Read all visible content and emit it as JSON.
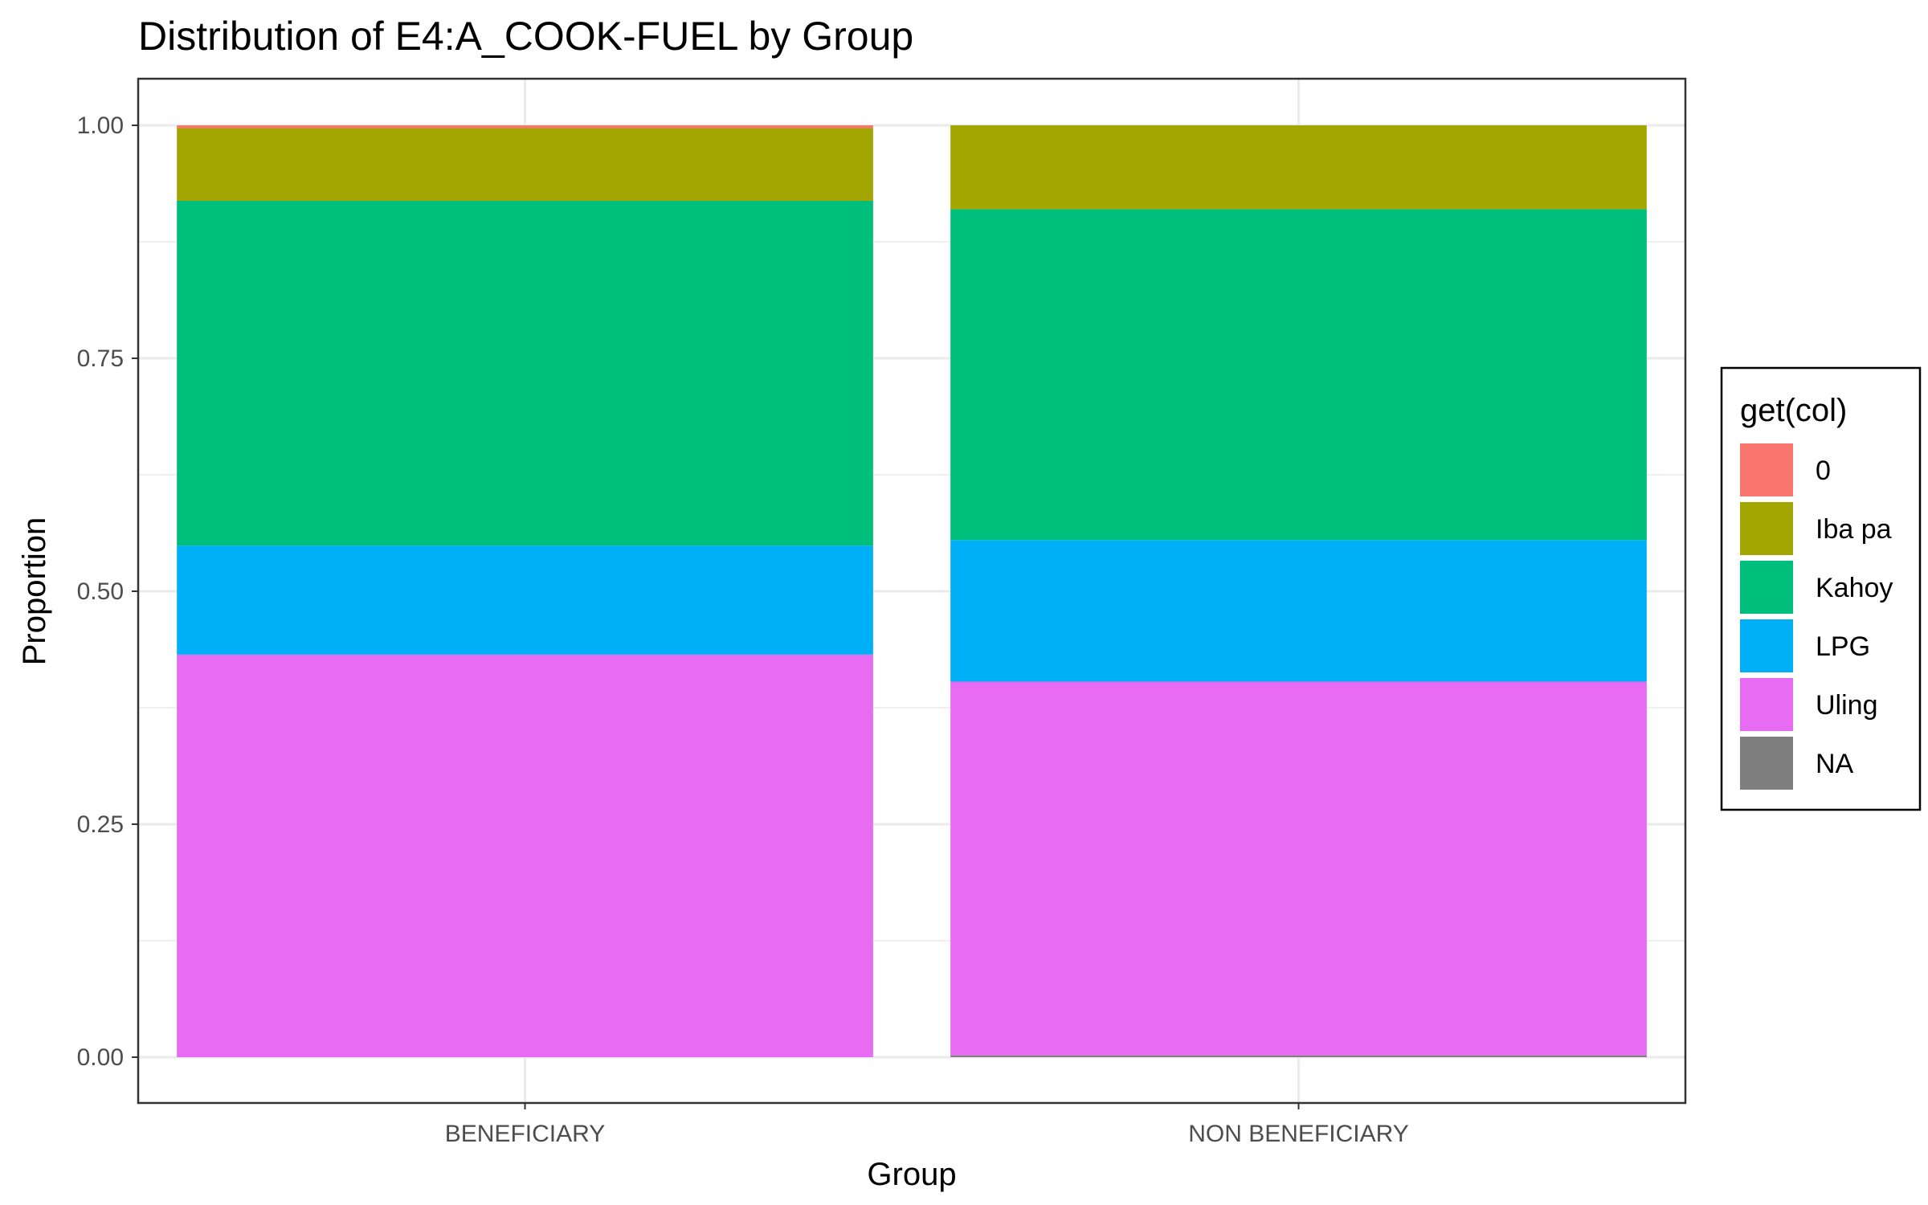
{
  "chart_data": {
    "type": "bar",
    "stacked": true,
    "title": "Distribution of E4:A_COOK-FUEL by Group",
    "xlabel": "Group",
    "ylabel": "Proportion",
    "ylim": [
      0,
      1.05
    ],
    "yticks": [
      "0.00",
      "0.25",
      "0.50",
      "0.75",
      "1.00"
    ],
    "grid": true,
    "legend_position": "right",
    "legend_title": "get(col)",
    "categories": [
      "BENEFICIARY",
      "NON BENEFICIARY"
    ],
    "series": [
      {
        "name": "0",
        "color": "#F8766D",
        "values": [
          0.003,
          0.0
        ]
      },
      {
        "name": "Iba pa",
        "color": "#A3A500",
        "values": [
          0.078,
          0.09
        ]
      },
      {
        "name": "Kahoy",
        "color": "#00BF7D",
        "values": [
          0.37,
          0.355
        ]
      },
      {
        "name": "LPG",
        "color": "#00B0F6",
        "values": [
          0.117,
          0.152
        ]
      },
      {
        "name": "Uling",
        "color": "#E76BF3",
        "values": [
          0.432,
          0.401
        ]
      },
      {
        "name": "NA",
        "color": "#7F7F7F",
        "values": [
          0.0,
          0.002
        ]
      }
    ]
  }
}
